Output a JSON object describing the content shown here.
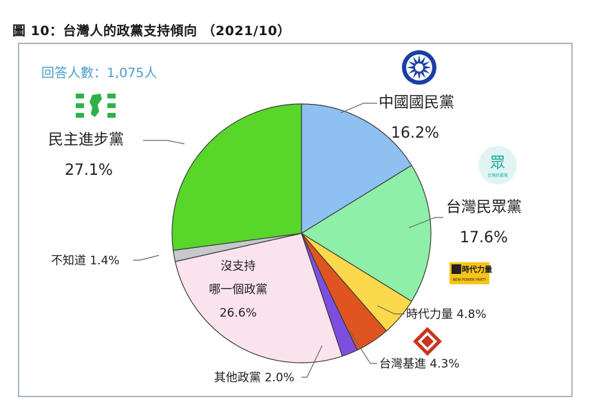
{
  "figure_title": "圖 10：台灣人的政黨支持傾向 （2021/10）",
  "respondents_label": "回答人數：1,075人",
  "logo_texts": {
    "tpp": "眾",
    "tpp_sub": "台灣民眾黨",
    "npp": "時代力量",
    "npp_sub": "NEW POWER PARTY"
  },
  "chart_data": {
    "type": "pie",
    "title": "圖 10：台灣人的政黨支持傾向 （2021/10）",
    "slices": [
      {
        "label": "中國國民黨",
        "value": 16.2,
        "display": "16.2%",
        "color": "#8ec1f2"
      },
      {
        "label": "台灣民眾黨",
        "value": 17.6,
        "display": "17.6%",
        "color": "#8ef0a8"
      },
      {
        "label": "時代力量",
        "value": 4.8,
        "display": "4.8%",
        "color": "#fcd94a"
      },
      {
        "label": "台灣基進",
        "value": 4.3,
        "display": "4.3%",
        "color": "#e0551f"
      },
      {
        "label": "其他政黨",
        "value": 2.0,
        "display": "2.0%",
        "color": "#7c4fe0"
      },
      {
        "label": "沒支持哪一個政黨",
        "value": 26.6,
        "display": "26.6%",
        "color": "#fbe3ee"
      },
      {
        "label": "不知道",
        "value": 1.4,
        "display": "1.4%",
        "color": "#c5c9cc"
      },
      {
        "label": "民主進步黨",
        "value": 27.1,
        "display": "27.1%",
        "color": "#58d62a"
      }
    ],
    "labels": {
      "kmt_name": "中國國民黨",
      "kmt_pct": "16.2%",
      "tpp_name": "台灣民眾黨",
      "tpp_pct": "17.6%",
      "npp_text": "時代力量 4.8%",
      "tsp_text": "台灣基進 4.3%",
      "other_text": "其他政黨 2.0%",
      "none_line1": "沒支持",
      "none_line2": "哪一個政黨",
      "none_pct": "26.6%",
      "unknown_text": "不知道 1.4%",
      "dpp_name": "民主進步黨",
      "dpp_pct": "27.1%"
    },
    "legend": "none"
  }
}
